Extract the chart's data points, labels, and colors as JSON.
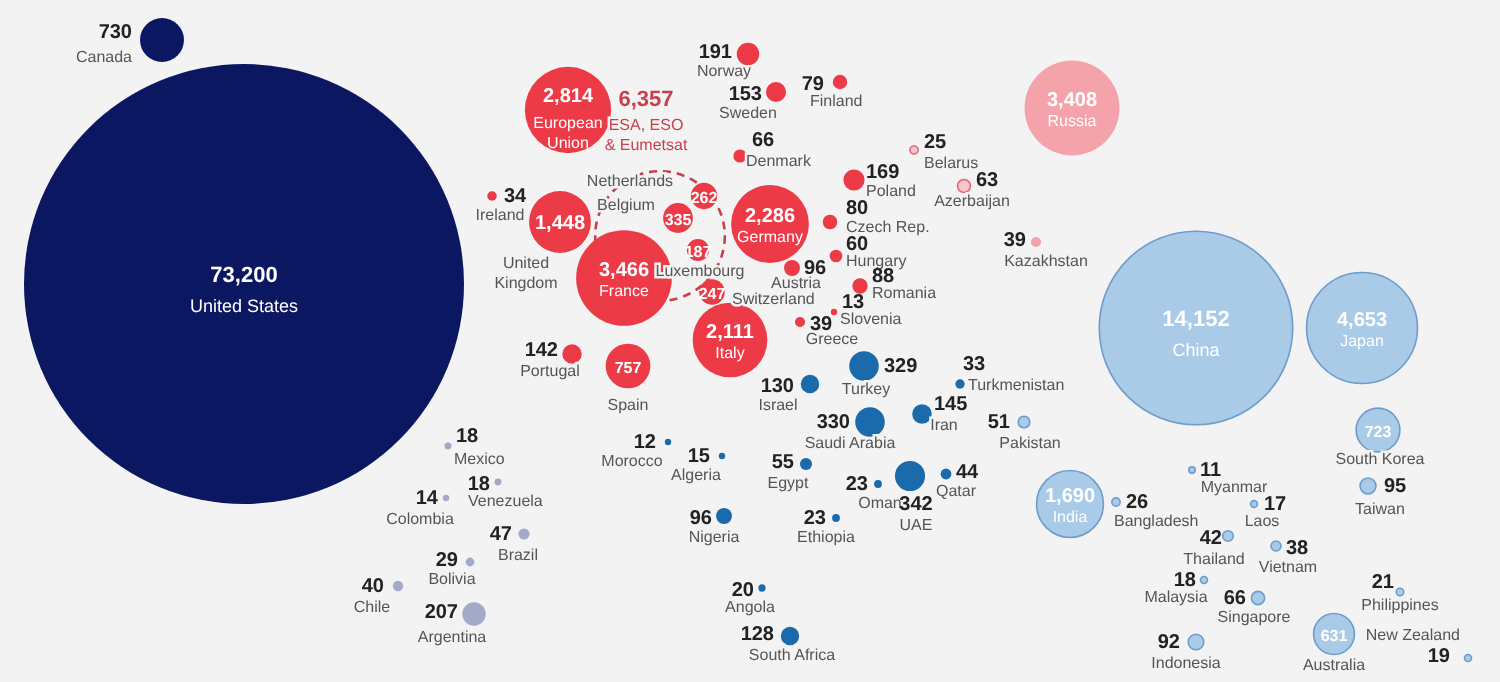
{
  "chart_data": {
    "type": "other",
    "value_labels": [
      "73,200",
      "730",
      "2,814",
      "6,357",
      "191",
      "153",
      "79",
      "66",
      "25",
      "169",
      "63",
      "80",
      "2,286",
      "262",
      "335",
      "187",
      "247",
      "34",
      "1,448",
      "3,466",
      "96",
      "60",
      "88",
      "13",
      "39",
      "2,111",
      "142",
      "757",
      "3,408",
      "39",
      "329",
      "33",
      "130",
      "330",
      "145",
      "51",
      "55",
      "23",
      "342",
      "44",
      "15",
      "12",
      "96",
      "23",
      "20",
      "128",
      "18",
      "18",
      "14",
      "47",
      "29",
      "40",
      "207",
      "14,152",
      "4,653",
      "723",
      "95",
      "1,690",
      "26",
      "11",
      "17",
      "42",
      "38",
      "18",
      "66",
      "92",
      "631",
      "21",
      "19"
    ],
    "categories": [
      "United States",
      "Canada",
      "European Union",
      "ESA, ESO & Eumetsat",
      "Norway",
      "Sweden",
      "Finland",
      "Denmark",
      "Belarus",
      "Poland",
      "Azerbaijan",
      "Czech Rep.",
      "Germany",
      "Netherlands",
      "Belgium",
      "Luxembourg",
      "Switzerland",
      "Ireland",
      "United Kingdom",
      "France",
      "Austria",
      "Hungary",
      "Romania",
      "Slovenia",
      "Greece",
      "Italy",
      "Portugal",
      "Spain",
      "Russia",
      "Kazakhstan",
      "Turkey",
      "Turkmenistan",
      "Israel",
      "Saudi Arabia",
      "Iran",
      "Pakistan",
      "Egypt",
      "Oman",
      "UAE",
      "Qatar",
      "Algeria",
      "Morocco",
      "Nigeria",
      "Ethiopia",
      "Angola",
      "South Africa",
      "Mexico",
      "Venezuela",
      "Colombia",
      "Brazil",
      "Bolivia",
      "Chile",
      "Argentina",
      "China",
      "Japan",
      "South Korea",
      "Taiwan",
      "India",
      "Bangladesh",
      "Myanmar",
      "Laos",
      "Thailand",
      "Vietnam",
      "Malaysia",
      "Singapore",
      "Indonesia",
      "Australia",
      "Philippines",
      "New Zealand"
    ],
    "values": [
      73200,
      730,
      2814,
      6357,
      191,
      153,
      79,
      66,
      25,
      169,
      63,
      80,
      2286,
      262,
      335,
      187,
      247,
      34,
      1448,
      3466,
      96,
      60,
      88,
      13,
      39,
      2111,
      142,
      757,
      3408,
      39,
      329,
      33,
      130,
      330,
      145,
      51,
      55,
      23,
      342,
      44,
      15,
      12,
      96,
      23,
      20,
      128,
      18,
      18,
      14,
      47,
      29,
      40,
      207,
      14152,
      4653,
      723,
      95,
      1690,
      26,
      11,
      17,
      42,
      38,
      18,
      66,
      92,
      631,
      21,
      19
    ],
    "colors": [
      "#0c1761",
      "#0c1761",
      "#ec3a46",
      "#c8404c",
      "#ec3a46",
      "#ec3a46",
      "#ec3a46",
      "#ec3a46",
      "#f6c4ca",
      "#ec3a46",
      "#f6c4ca",
      "#ec3a46",
      "#ec3a46",
      "#ec3a46",
      "#ec3a46",
      "#ec3a46",
      "#ec3a46",
      "#ec3a46",
      "#ec3a46",
      "#ec3a46",
      "#ec3a46",
      "#ec3a46",
      "#ec3a46",
      "#ec3a46",
      "#ec3a46",
      "#ec3a46",
      "#ec3a46",
      "#ec3a46",
      "#f5a3ab",
      "#f5a3ab",
      "#1b6aab",
      "#1b6aab",
      "#1b6aab",
      "#1b6aab",
      "#1b6aab",
      "#a9cbe8",
      "#1b6aab",
      "#1b6aab",
      "#1b6aab",
      "#1b6aab",
      "#1b6aab",
      "#1b6aab",
      "#1b6aab",
      "#1b6aab",
      "#1b6aab",
      "#1b6aab",
      "#a3a9c8",
      "#a3a9c8",
      "#a3a9c8",
      "#a3a9c8",
      "#a3a9c8",
      "#a3a9c8",
      "#a3a9c8",
      "#a9cbe8",
      "#a9cbe8",
      "#a9cbe8",
      "#a9cbe8",
      "#a9cbe8",
      "#a9cbe8",
      "#a9cbe8",
      "#a9cbe8",
      "#a9cbe8",
      "#a9cbe8",
      "#a9cbe8",
      "#a9cbe8",
      "#a9cbe8",
      "#a9cbe8",
      "#a9cbe8",
      "#a9cbe8"
    ]
  }
}
